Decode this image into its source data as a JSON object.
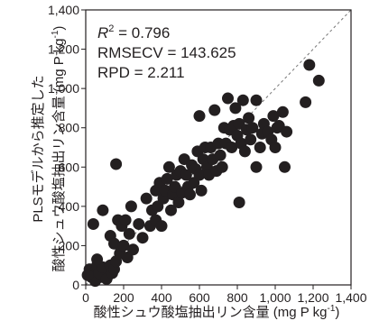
{
  "chart_data": {
    "type": "scatter",
    "x_label": {
      "text": "酸性シュウ酸塩抽出リン含量 (mg P kg",
      "sup": "-1",
      "end": ")"
    },
    "y_label": {
      "line1": "PLSモデルから推定した",
      "text": "酸性シュウ酸塩抽出リン含量 (mg P kg",
      "sup": "-1",
      "end": ")"
    },
    "annotations": [
      {
        "symbol": "R",
        "sup": "2",
        "text": " = 0.796"
      },
      {
        "text": "RMSECV = 143.625"
      },
      {
        "text": "RPD = 2.211"
      }
    ],
    "color": "#231f20",
    "one_to_one_line": true,
    "xlim": [
      0,
      1400
    ],
    "ylim": [
      0,
      1400
    ],
    "xticks": [
      0,
      200,
      400,
      600,
      800,
      {
        "value": 1000,
        "label": "1,000"
      },
      {
        "value": 1200,
        "label": "1,200"
      },
      {
        "value": 1400,
        "label": "1,400"
      }
    ],
    "yticks": [
      0,
      200,
      400,
      600,
      800,
      {
        "value": 1000,
        "label": "1,000"
      },
      {
        "value": 1200,
        "label": "1,200"
      },
      {
        "value": 1400,
        "label": "1,400"
      }
    ],
    "x": [
      20,
      40,
      60,
      80,
      100,
      120,
      30,
      50,
      70,
      90,
      110,
      140,
      10,
      60,
      130,
      150,
      40,
      90,
      130,
      150,
      160,
      180,
      200,
      170,
      190,
      210,
      160,
      220,
      230,
      250,
      240,
      280,
      300,
      320,
      340,
      350,
      370,
      370,
      380,
      390,
      400,
      410,
      420,
      430,
      440,
      450,
      460,
      470,
      480,
      490,
      500,
      510,
      520,
      530,
      540,
      550,
      560,
      570,
      580,
      590,
      600,
      600,
      610,
      620,
      630,
      640,
      650,
      660,
      670,
      680,
      690,
      700,
      710,
      720,
      730,
      740,
      750,
      760,
      770,
      780,
      790,
      800,
      810,
      810,
      820,
      830,
      840,
      850,
      860,
      870,
      880,
      900,
      900,
      920,
      930,
      940,
      960,
      980,
      990,
      1000,
      1010,
      1020,
      1040,
      1050,
      1060,
      1160,
      1180,
      1230
    ],
    "values": [
      80,
      60,
      100,
      40,
      70,
      50,
      40,
      20,
      60,
      90,
      30,
      60,
      50,
      130,
      100,
      80,
      310,
      380,
      250,
      210,
      120,
      160,
      200,
      330,
      300,
      330,
      615,
      140,
      260,
      180,
      400,
      310,
      240,
      440,
      300,
      380,
      330,
      480,
      400,
      520,
      300,
      440,
      480,
      540,
      600,
      380,
      460,
      500,
      560,
      420,
      580,
      470,
      640,
      560,
      500,
      460,
      610,
      520,
      590,
      680,
      560,
      860,
      480,
      640,
      700,
      600,
      560,
      700,
      640,
      890,
      580,
      720,
      660,
      600,
      800,
      720,
      950,
      790,
      700,
      810,
      900,
      760,
      820,
      420,
      720,
      940,
      680,
      790,
      850,
      740,
      800,
      940,
      600,
      700,
      770,
      820,
      780,
      740,
      860,
      700,
      800,
      810,
      880,
      600,
      780,
      930,
      1120,
      1040
    ]
  }
}
